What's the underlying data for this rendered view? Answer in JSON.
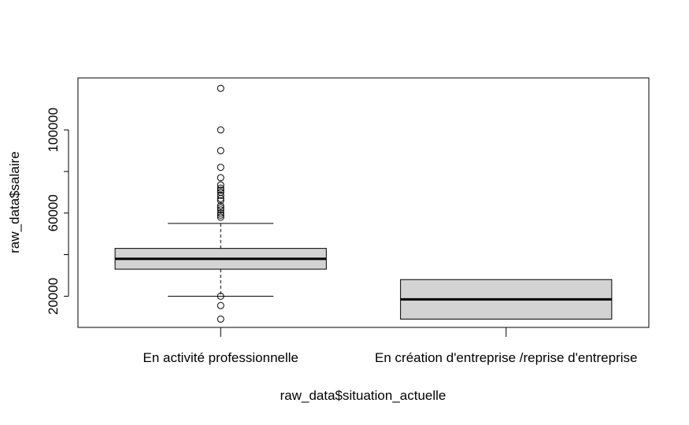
{
  "chart_data": {
    "type": "boxplot",
    "xlabel": "raw_data$situation_actuelle",
    "ylabel": "raw_data$salaire",
    "ylim": [
      5000,
      125000
    ],
    "yticks": [
      20000,
      60000,
      100000
    ],
    "ytick_labels": [
      "20000",
      "60000",
      "100000"
    ],
    "grid": false,
    "categories": [
      "En activité professionnelle",
      "En création d'entreprise /reprise d'entreprise"
    ],
    "boxes": [
      {
        "name": "En activité professionnelle",
        "whisker_low": 20000,
        "q1": 33000,
        "median": 38000,
        "q3": 43000,
        "whisker_high": 55000,
        "outliers": [
          9000,
          15500,
          20000,
          58000,
          59000,
          60000,
          61500,
          62500,
          63500,
          66000,
          67000,
          68500,
          70000,
          71000,
          72000,
          73500,
          77000,
          82000,
          90000,
          100000,
          120000
        ]
      },
      {
        "name": "En création d'entreprise /reprise d'entreprise",
        "whisker_low": 9000,
        "q1": 9000,
        "median": 18500,
        "q3": 28000,
        "whisker_high": 28000,
        "outliers": []
      }
    ],
    "box_fill": "#d3d3d3"
  }
}
